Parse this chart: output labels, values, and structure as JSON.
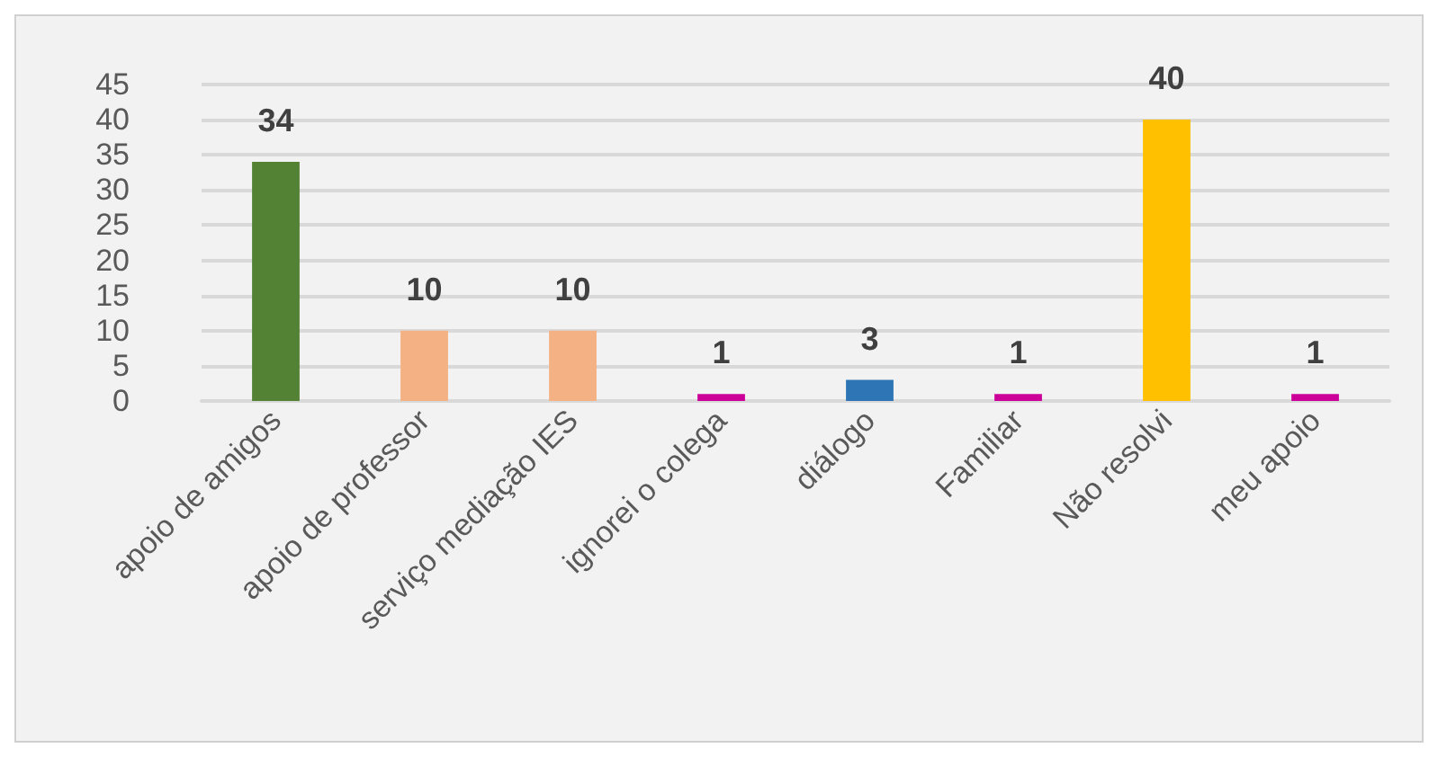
{
  "chart_data": {
    "type": "bar",
    "categories": [
      "apoio de amigos",
      "apoio de professor",
      "serviço mediação IES",
      "ignorei o colega",
      "diálogo",
      "Familiar",
      "Não resolvi",
      "meu apoio"
    ],
    "values": [
      34,
      10,
      10,
      1,
      3,
      1,
      40,
      1
    ],
    "colors": [
      "#548235",
      "#f4b183",
      "#f4b183",
      "#cc0099",
      "#2e75b6",
      "#cc0099",
      "#ffc000",
      "#cc0099"
    ],
    "ylim": [
      0,
      45
    ],
    "yticks": [
      0,
      5,
      10,
      15,
      20,
      25,
      30,
      35,
      40,
      45
    ],
    "grid": "y",
    "data_labels": true
  }
}
